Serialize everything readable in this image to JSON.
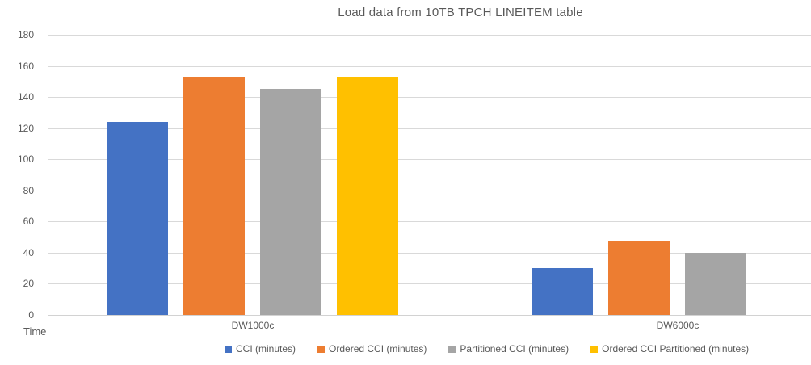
{
  "chart_data": {
    "type": "bar",
    "title": "Load data from 10TB TPCH LINEITEM table",
    "axis_title": "Time",
    "categories": [
      "DW1000c",
      "DW6000c"
    ],
    "series": [
      {
        "name": "CCI (minutes)",
        "color": "#4472C4",
        "values": [
          124,
          30
        ]
      },
      {
        "name": "Ordered CCI (minutes)",
        "color": "#ED7D31",
        "values": [
          153,
          47
        ]
      },
      {
        "name": "Partitioned CCI (minutes)",
        "color": "#A5A5A5",
        "values": [
          145,
          40
        ]
      },
      {
        "name": "Ordered CCI Partitioned (minutes)",
        "color": "#FFC000",
        "values": [
          153,
          null
        ]
      }
    ],
    "ylim": [
      0,
      180
    ],
    "ytick_step": 20,
    "ytick_labels": [
      "0",
      "20",
      "40",
      "60",
      "80",
      "100",
      "120",
      "140",
      "160",
      "180"
    ],
    "grid": true,
    "legend_position": "bottom",
    "colors": {
      "gridline": "#D9D9D9",
      "text": "#595959",
      "background": "#FFFFFF"
    }
  }
}
